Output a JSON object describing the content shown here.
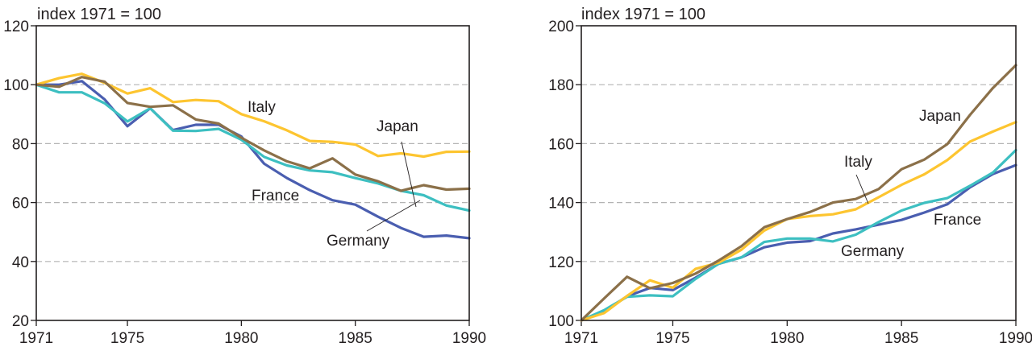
{
  "colors": {
    "France": "#4a5eb0",
    "Germany": "#3dbfc1",
    "Italy": "#fdc530",
    "Japan": "#8b7049"
  },
  "chart_data": [
    {
      "type": "line",
      "title": "",
      "unit_label": "index 1971 = 100",
      "xlabel": "",
      "ylabel": "",
      "xlim": [
        1971,
        1990
      ],
      "ylim": [
        20,
        120
      ],
      "grid": true,
      "x_ticks": [
        "1971",
        "1975",
        "1980",
        "1985",
        "1990"
      ],
      "y_ticks": [
        "20",
        "40",
        "60",
        "80",
        "100",
        "120"
      ],
      "x": [
        1971,
        1972,
        1973,
        1974,
        1975,
        1976,
        1977,
        1978,
        1979,
        1980,
        1981,
        1982,
        1983,
        1984,
        1985,
        1986,
        1987,
        1988,
        1989,
        1990
      ],
      "series": [
        {
          "name": "Italy",
          "label": "Italy",
          "values": [
            100,
            102.2,
            103.7,
            100.6,
            97,
            98.8,
            94.1,
            94.8,
            94.4,
            90,
            87.6,
            84.5,
            80.9,
            80.6,
            79.7,
            75.8,
            76.7,
            75.6,
            77.2,
            77.3
          ]
        },
        {
          "name": "Japan",
          "label": "Japan",
          "values": [
            100,
            99.3,
            102.6,
            101,
            93.8,
            92.5,
            93,
            88.2,
            86.8,
            82,
            77.7,
            74,
            71.6,
            75,
            69.5,
            67.2,
            64,
            65.9,
            64.4,
            64.7
          ]
        },
        {
          "name": "Germany",
          "label": "Germany",
          "values": [
            100,
            97.4,
            97.4,
            93.7,
            87.5,
            92,
            84.4,
            84.3,
            85,
            81.3,
            75.5,
            72.6,
            70.9,
            70.3,
            68.3,
            66.5,
            64,
            62.5,
            59,
            57.3
          ]
        },
        {
          "name": "France",
          "label": "France",
          "values": [
            100,
            100,
            101.2,
            95,
            85.9,
            92,
            84.6,
            86.4,
            86.4,
            82.4,
            73.2,
            68.3,
            64.2,
            60.8,
            59.3,
            55.2,
            51.4,
            48.4,
            48.8,
            47.9
          ]
        }
      ]
    },
    {
      "type": "line",
      "title": "",
      "unit_label": "index 1971 = 100",
      "xlabel": "",
      "ylabel": "",
      "xlim": [
        1971,
        1990
      ],
      "ylim": [
        100,
        200
      ],
      "grid": true,
      "x_ticks": [
        "1971",
        "1975",
        "1980",
        "1985",
        "1990"
      ],
      "y_ticks": [
        "100",
        "120",
        "140",
        "160",
        "180",
        "200"
      ],
      "x": [
        1971,
        1972,
        1973,
        1974,
        1975,
        1976,
        1977,
        1978,
        1979,
        1980,
        1981,
        1982,
        1983,
        1984,
        1985,
        1986,
        1987,
        1988,
        1989,
        1990
      ],
      "series": [
        {
          "name": "Japan",
          "label": "Japan",
          "values": [
            100,
            107.5,
            114.8,
            110.9,
            112.7,
            115.9,
            120.3,
            125.2,
            131.6,
            134.4,
            136.8,
            140,
            141.2,
            144.6,
            151.3,
            154.6,
            159.8,
            169.8,
            178.9,
            186.6
          ]
        },
        {
          "name": "Italy",
          "label": "Italy",
          "values": [
            100,
            102.5,
            108.3,
            113.6,
            111.1,
            117.5,
            119.6,
            124,
            130.5,
            134.4,
            135.4,
            136,
            137.7,
            141.8,
            146,
            149.6,
            154.4,
            160.7,
            164.1,
            167.3
          ]
        },
        {
          "name": "Germany",
          "label": "Germany",
          "values": [
            100,
            103.5,
            108,
            108.5,
            108.2,
            114.1,
            119.2,
            121.4,
            126.6,
            127.8,
            127.8,
            126.8,
            129.1,
            133.4,
            137.3,
            139.9,
            141.5,
            145.7,
            150.2,
            157.8
          ]
        },
        {
          "name": "France",
          "label": "France",
          "values": [
            100,
            103,
            108.2,
            111,
            110.3,
            114.5,
            119.2,
            121.4,
            124.8,
            126.4,
            126.9,
            129.5,
            130.9,
            132.5,
            134.1,
            136.6,
            139.4,
            145.2,
            149.7,
            152.7
          ]
        }
      ]
    }
  ]
}
